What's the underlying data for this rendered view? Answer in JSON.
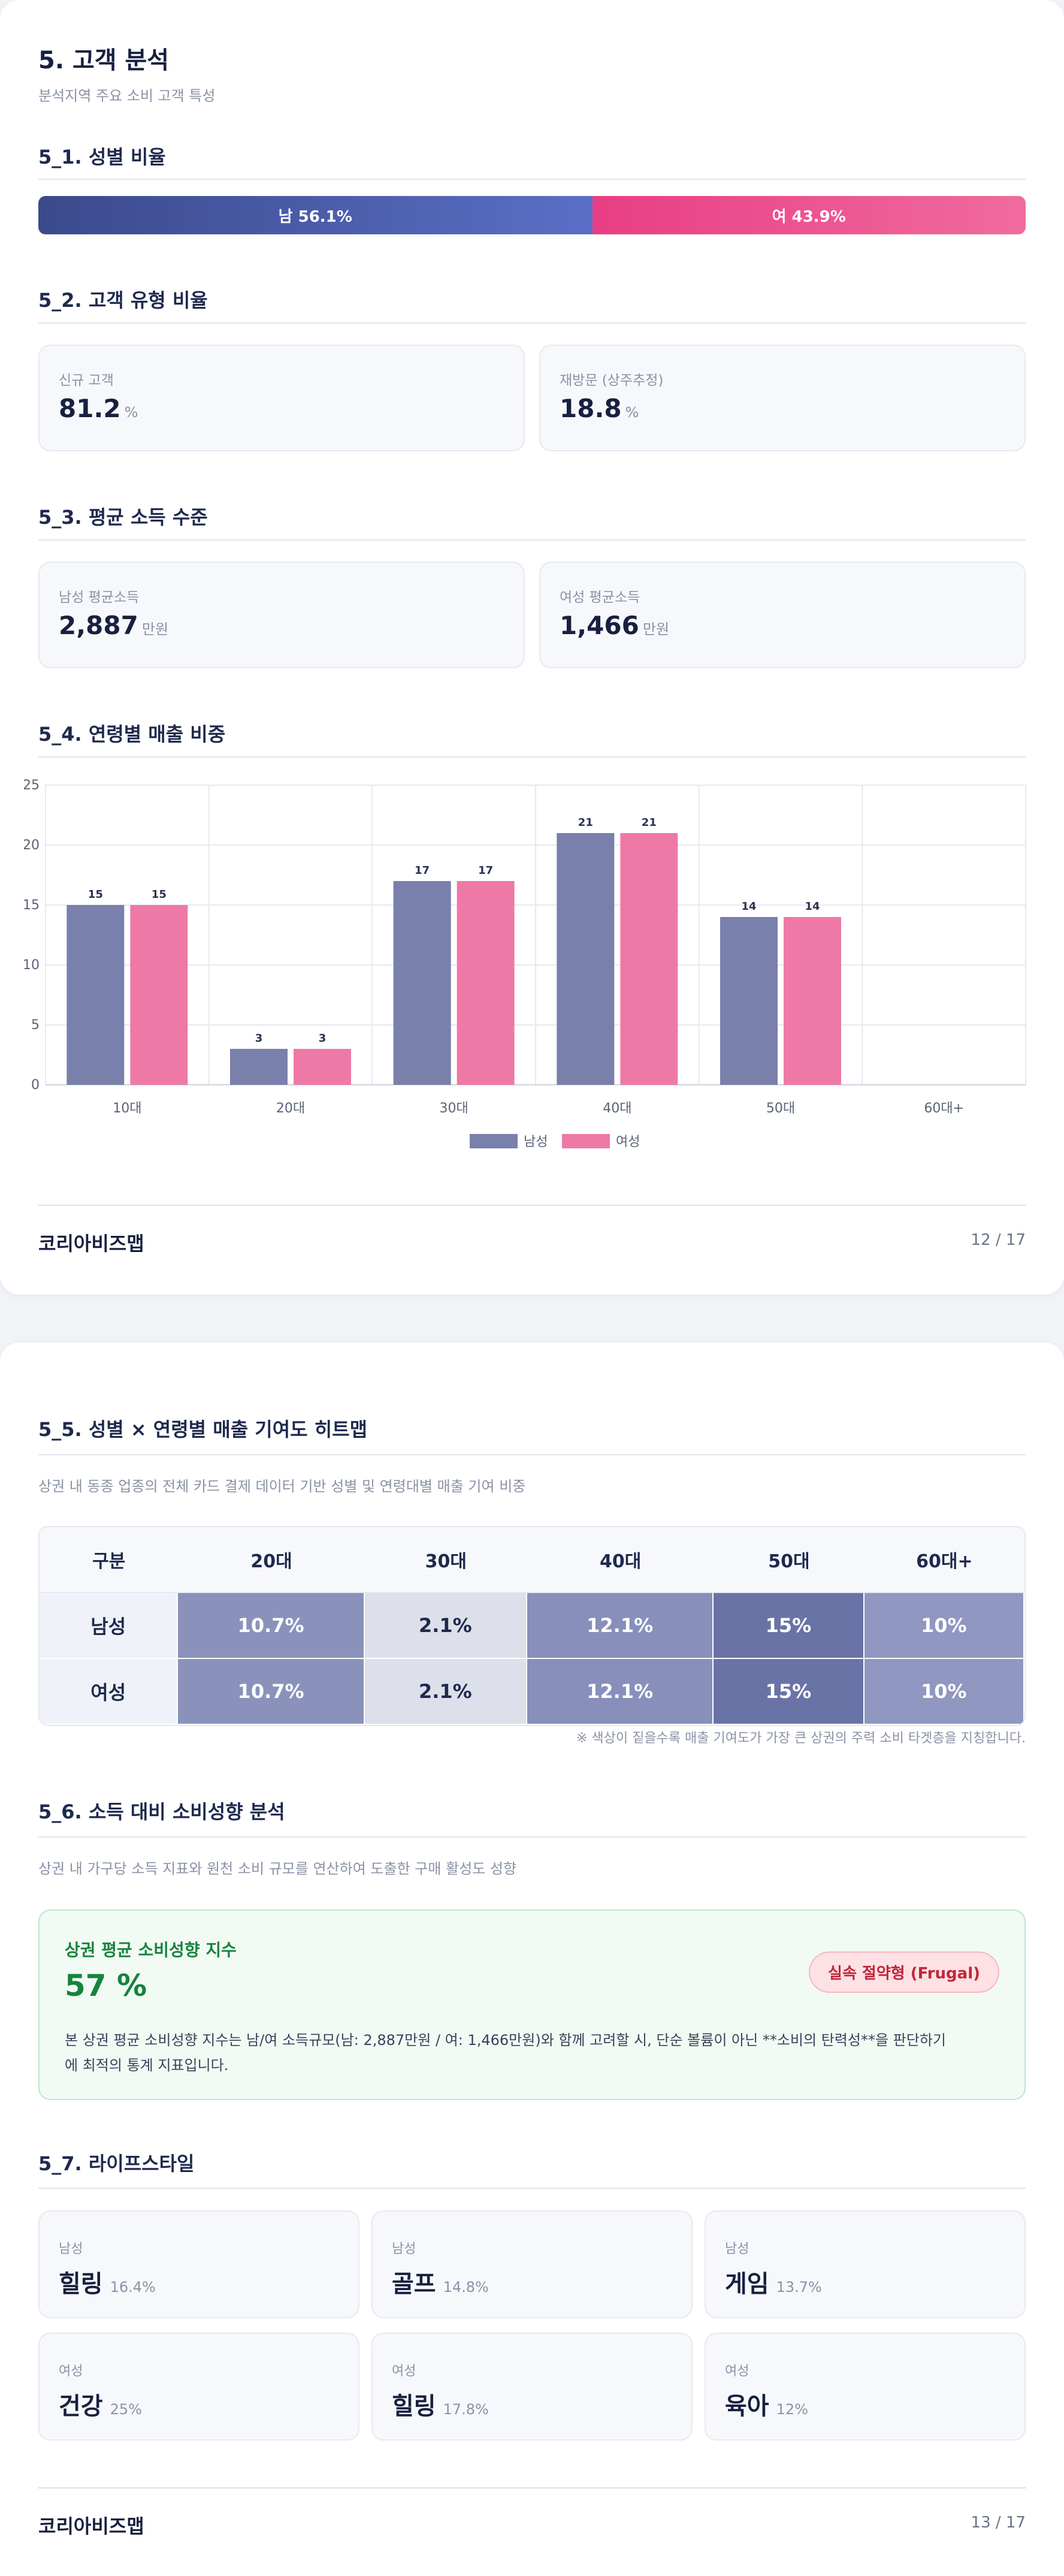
{
  "page1": {
    "title": "5. 고객 분석",
    "subtitle": "분석지역 주요 소비 고객 특성",
    "sec1_title": "5_1. 성별 비율",
    "gender": {
      "male_label": "남 56.1%",
      "female_label": "여 43.9%",
      "male_pct": 56.1,
      "female_pct": 43.9
    },
    "sec2_title": "5_2. 고객 유형 비율",
    "customer_type": [
      {
        "label": "신규 고객",
        "value": "81.2",
        "unit": "%"
      },
      {
        "label": "재방문 (상주추정)",
        "value": "18.8",
        "unit": "%"
      }
    ],
    "sec3_title": "5_3. 평균 소득 수준",
    "income": [
      {
        "label": "남성 평균소득",
        "value": "2,887",
        "unit": "만원"
      },
      {
        "label": "여성 평균소득",
        "value": "1,466",
        "unit": "만원"
      }
    ],
    "sec4_title": "5_4. 연령별 매출 비중",
    "footer": {
      "brand": "코리아비즈맵",
      "page": "12 / 17"
    }
  },
  "chart_data": {
    "type": "bar",
    "categories": [
      "10대",
      "20대",
      "30대",
      "40대",
      "50대",
      "60대+"
    ],
    "series": [
      {
        "name": "남성",
        "values": [
          15,
          3,
          17,
          21,
          14,
          null
        ],
        "color": "#7880ab"
      },
      {
        "name": "여성",
        "values": [
          15,
          3,
          17,
          21,
          14,
          null
        ],
        "color": "#ee79a6"
      }
    ],
    "ylim": [
      0,
      25
    ],
    "yticks": [
      0,
      5,
      10,
      15,
      20,
      25
    ],
    "grid": true,
    "legend": "bottom-center"
  },
  "page2": {
    "sec5_title": "5_5. 성별 × 연령별 매출 기여도 히트맵",
    "sec5_desc": "상권 내 동종 업종의 전체 카드 결제 데이터 기반 성별 및 연령대별 매출 기여 비중",
    "heatmap": {
      "headers": [
        "구분",
        "20대",
        "30대",
        "40대",
        "50대",
        "60대+"
      ],
      "rows": [
        {
          "label": "남성",
          "values": [
            "10.7%",
            "2.1%",
            "12.1%",
            "15%",
            "10%"
          ]
        },
        {
          "label": "여성",
          "values": [
            "10.7%",
            "2.1%",
            "12.1%",
            "15%",
            "10%"
          ]
        }
      ],
      "colors": [
        "#8a92bb",
        "#dddfea",
        "#878fba",
        "#6a73a6",
        "#9097c0"
      ],
      "note": "※ 색상이 짙을수록 매출 기여도가 가장 큰 상권의 주력 소비 타겟층을 지칭합니다."
    },
    "sec6_title": "5_6. 소득 대비 소비성향 분석",
    "sec6_desc": "상권 내 가구당 소득 지표와 원천 소비 규모를 연산하여 도출한 구매 활성도 성향",
    "propensity": {
      "label": "상권 평균 소비성향 지수",
      "value": "57 %",
      "badge": "실속 절약형 (Frugal)",
      "desc_line1": "본 상권 평균 소비성향 지수는 남/여 소득규모(남: 2,887만원 / 여: 1,466만원)와 함께 고려할 시, 단순 볼륨이 아닌 **소비의 탄력성**을 판단하기",
      "desc_line2": "에 최적의 통계 지표입니다."
    },
    "sec7_title": "5_7. 라이프스타일",
    "lifestyle": [
      {
        "gender": "남성",
        "name": "힐링",
        "pct": "16.4%"
      },
      {
        "gender": "남성",
        "name": "골프",
        "pct": "14.8%"
      },
      {
        "gender": "남성",
        "name": "게임",
        "pct": "13.7%"
      },
      {
        "gender": "여성",
        "name": "건강",
        "pct": "25%"
      },
      {
        "gender": "여성",
        "name": "힐링",
        "pct": "17.8%"
      },
      {
        "gender": "여성",
        "name": "육아",
        "pct": "12%"
      }
    ],
    "footer": {
      "brand": "코리아비즈맵",
      "page": "13 / 17"
    }
  }
}
